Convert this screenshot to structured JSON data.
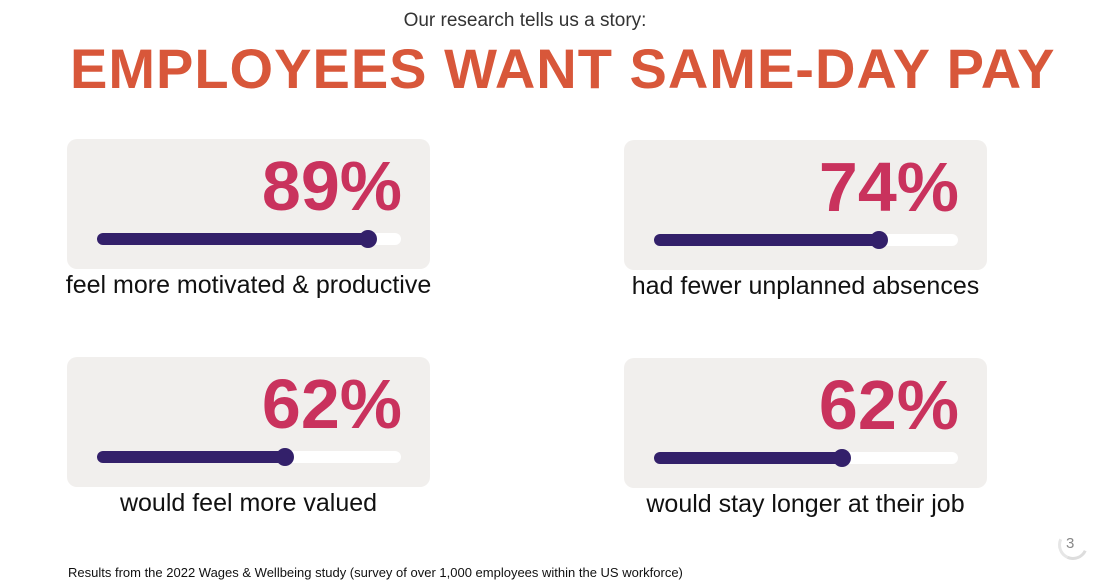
{
  "header": {
    "subtitle": "Our research tells us a story:",
    "title": "EMPLOYEES WANT SAME-DAY PAY"
  },
  "colors": {
    "title": "#d8573a",
    "percent": "#c9325d",
    "bar_fill": "#33206a",
    "card_bg": "#f1efed"
  },
  "stats": [
    {
      "percent_text": "89%",
      "value": 0.89,
      "label": "feel more motivated & productive"
    },
    {
      "percent_text": "74%",
      "value": 0.74,
      "label": "had fewer unplanned absences"
    },
    {
      "percent_text": "62%",
      "value": 0.62,
      "label": "would feel more valued"
    },
    {
      "percent_text": "62%",
      "value": 0.62,
      "label": "would stay longer at their job"
    }
  ],
  "footnote": "Results from the 2022 Wages & Wellbeing study (survey of over 1,000 employees within the US workforce)",
  "page_number": "3"
}
